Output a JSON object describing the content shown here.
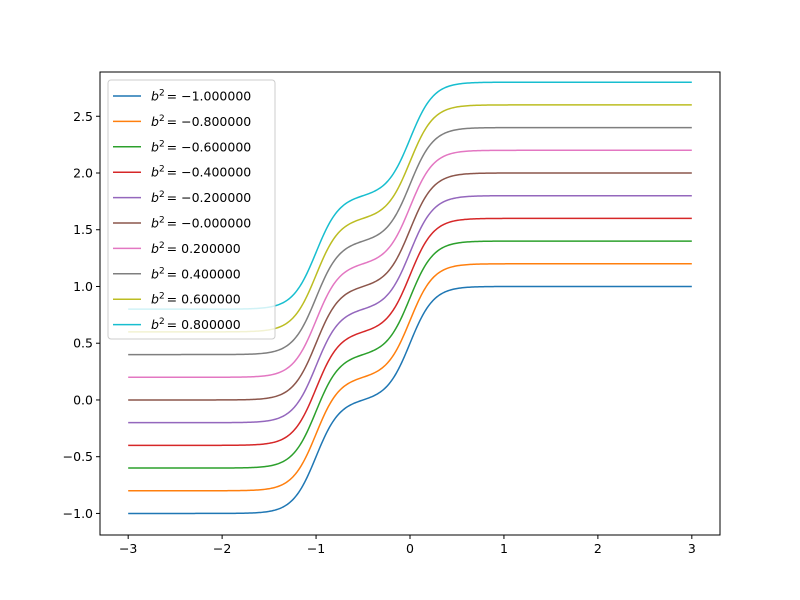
{
  "chart_data": {
    "type": "line",
    "title": "",
    "xlabel": "",
    "ylabel": "",
    "xlim": [
      -3.3,
      3.3
    ],
    "ylim": [
      -1.19,
      2.89
    ],
    "x_ticks": [
      -3,
      -2,
      -1,
      0,
      1,
      2,
      3
    ],
    "x_tick_labels": [
      "−3",
      "−2",
      "−1",
      "0",
      "1",
      "2",
      "3"
    ],
    "y_ticks": [
      -1.0,
      -0.5,
      0.0,
      0.5,
      1.0,
      1.5,
      2.0,
      2.5
    ],
    "y_tick_labels": [
      "−1.0",
      "−0.5",
      "0.0",
      "0.5",
      "1.0",
      "1.5",
      "2.0",
      "2.5"
    ],
    "grid": false,
    "legend_position": "upper-left",
    "curve_family": {
      "description_x_domain": [
        -3,
        3
      ],
      "step_centers": [
        -1.0,
        0.0
      ],
      "step_steepness": 8
    },
    "series": [
      {
        "name": "b² = −1.000000",
        "label_base": "b",
        "label_exp": "2",
        "label_value": "= −1.000000",
        "offset": -1.0,
        "color": "#1f77b4"
      },
      {
        "name": "b² = −0.800000",
        "label_base": "b",
        "label_exp": "2",
        "label_value": "= −0.800000",
        "offset": -0.8,
        "color": "#ff7f0e"
      },
      {
        "name": "b² = −0.600000",
        "label_base": "b",
        "label_exp": "2",
        "label_value": "= −0.600000",
        "offset": -0.6,
        "color": "#2ca02c"
      },
      {
        "name": "b² = −0.400000",
        "label_base": "b",
        "label_exp": "2",
        "label_value": "= −0.400000",
        "offset": -0.4,
        "color": "#d62728"
      },
      {
        "name": "b² = −0.200000",
        "label_base": "b",
        "label_exp": "2",
        "label_value": "= −0.200000",
        "offset": -0.2,
        "color": "#9467bd"
      },
      {
        "name": "b² = −0.000000",
        "label_base": "b",
        "label_exp": "2",
        "label_value": "= −0.000000",
        "offset": 0.0,
        "color": "#8c564b"
      },
      {
        "name": "b² = 0.200000",
        "label_base": "b",
        "label_exp": "2",
        "label_value": "= 0.200000",
        "offset": 0.2,
        "color": "#e377c2"
      },
      {
        "name": "b² = 0.400000",
        "label_base": "b",
        "label_exp": "2",
        "label_value": "= 0.400000",
        "offset": 0.4,
        "color": "#7f7f7f"
      },
      {
        "name": "b² = 0.600000",
        "label_base": "b",
        "label_exp": "2",
        "label_value": "= 0.600000",
        "offset": 0.6,
        "color": "#bcbd22"
      },
      {
        "name": "b² = 0.800000",
        "label_base": "b",
        "label_exp": "2",
        "label_value": "= 0.800000",
        "offset": 0.8,
        "color": "#17becf"
      }
    ]
  }
}
